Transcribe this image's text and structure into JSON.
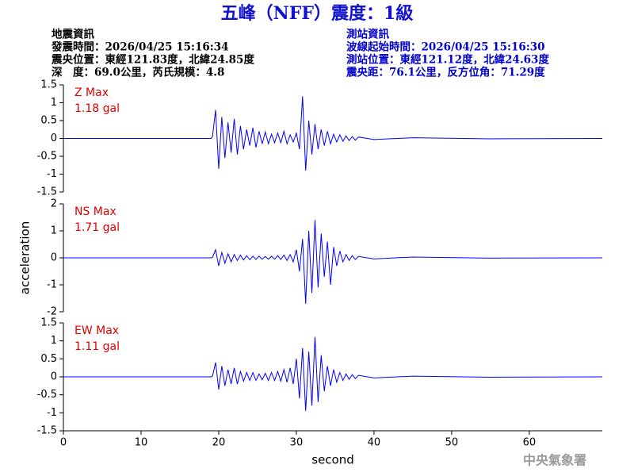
{
  "title": "五峰（NFF）震度：1級",
  "event_info": [
    "地震資訊",
    "發震時間：2026/04/25 15:16:34",
    "震央位置：東經121.83度，北緯24.85度",
    "深　度：69.0公里，芮氏規模：4.8"
  ],
  "station_info": [
    "測站資訊",
    "波線起始時間：2026/04/25 15:16:30",
    "測站位置：東經121.12度，北緯24.63度",
    "震央距：76.1公里，反方位角：71.29度"
  ],
  "footer": "中央氣象署",
  "chart_data": [
    {
      "type": "line",
      "color": "#0000ff",
      "annotations": [
        "Z Max",
        "1.18 gal"
      ],
      "xlim": [
        0,
        69.4
      ],
      "ylim": [
        -1.5,
        1.5
      ],
      "yticks": [
        1.5,
        1,
        0.5,
        0,
        -0.5,
        -1,
        -1.5
      ],
      "x": [
        0,
        19.0,
        19.2,
        19.6,
        20.0,
        20.4,
        20.8,
        21.2,
        21.6,
        22.0,
        22.4,
        22.8,
        23.2,
        23.6,
        24.0,
        24.4,
        24.8,
        25.2,
        25.6,
        26.0,
        26.4,
        26.8,
        27.2,
        27.6,
        28.0,
        28.4,
        28.8,
        29.2,
        29.6,
        30.0,
        30.4,
        30.8,
        31.2,
        31.6,
        32.0,
        32.4,
        32.8,
        33.2,
        33.6,
        34.0,
        34.4,
        34.8,
        35.2,
        35.6,
        36.0,
        36.4,
        36.8,
        37.2,
        37.6,
        38.0,
        40,
        45,
        55,
        69.4
      ],
      "values": [
        0,
        0,
        0.05,
        0.8,
        -0.85,
        0.6,
        -0.55,
        0.45,
        -0.4,
        0.55,
        -0.45,
        0.35,
        -0.3,
        0.25,
        -0.2,
        0.3,
        -0.25,
        0.2,
        -0.15,
        0.18,
        -0.15,
        0.12,
        -0.12,
        0.15,
        -0.12,
        0.2,
        -0.15,
        0.1,
        -0.1,
        0.15,
        -0.3,
        1.18,
        -0.9,
        0.5,
        -0.45,
        0.4,
        -0.3,
        0.25,
        -0.2,
        0.2,
        -0.15,
        0.12,
        -0.1,
        0.1,
        -0.08,
        0.07,
        -0.06,
        0.05,
        -0.05,
        0.04,
        -0.03,
        0.02,
        -0.01,
        0
      ]
    },
    {
      "type": "line",
      "color": "#0000ff",
      "annotations": [
        "NS Max",
        "1.71 gal"
      ],
      "ylabel": "acceleration",
      "xlim": [
        0,
        69.4
      ],
      "ylim": [
        -2,
        2
      ],
      "yticks": [
        2,
        1,
        0,
        -1,
        -2
      ],
      "x": [
        0,
        19.0,
        19.2,
        19.6,
        20.0,
        20.4,
        20.8,
        21.2,
        21.6,
        22.0,
        22.4,
        22.8,
        23.2,
        23.6,
        24.0,
        24.4,
        24.8,
        25.2,
        25.6,
        26.0,
        26.4,
        26.8,
        27.2,
        27.6,
        28.0,
        28.4,
        28.8,
        29.2,
        29.6,
        30.0,
        30.4,
        30.8,
        31.2,
        31.6,
        32.0,
        32.4,
        32.8,
        33.2,
        33.6,
        34.0,
        34.4,
        34.8,
        35.2,
        35.6,
        36.0,
        36.4,
        36.8,
        37.2,
        37.6,
        38.0,
        40,
        45,
        55,
        69.4
      ],
      "values": [
        0,
        0,
        0.02,
        0.3,
        -0.3,
        0.2,
        -0.2,
        0.15,
        -0.15,
        0.12,
        -0.1,
        0.1,
        -0.08,
        0.08,
        -0.07,
        0.06,
        -0.06,
        0.06,
        -0.05,
        0.05,
        -0.05,
        0.06,
        -0.05,
        0.08,
        -0.06,
        0.1,
        -0.1,
        0.12,
        -0.15,
        0.3,
        -0.5,
        0.7,
        -1.7,
        1.0,
        -1.3,
        1.4,
        -1.1,
        0.9,
        -0.7,
        0.6,
        -1.0,
        0.4,
        -0.3,
        0.25,
        -0.15,
        0.12,
        -0.1,
        0.08,
        -0.06,
        0.05,
        -0.04,
        0.03,
        -0.01,
        0
      ]
    },
    {
      "type": "line",
      "color": "#0000ff",
      "annotations": [
        "EW Max",
        "1.11 gal"
      ],
      "xlabel": "second",
      "xlim": [
        0,
        69.4
      ],
      "ylim": [
        -1.5,
        1.5
      ],
      "yticks": [
        1.5,
        1,
        0.5,
        0,
        -0.5,
        -1,
        -1.5
      ],
      "xticks": [
        0,
        10,
        20,
        30,
        40,
        50,
        60
      ],
      "x": [
        0,
        19.0,
        19.2,
        19.6,
        20.0,
        20.4,
        20.8,
        21.2,
        21.6,
        22.0,
        22.4,
        22.8,
        23.2,
        23.6,
        24.0,
        24.4,
        24.8,
        25.2,
        25.6,
        26.0,
        26.4,
        26.8,
        27.2,
        27.6,
        28.0,
        28.4,
        28.8,
        29.2,
        29.6,
        30.0,
        30.4,
        30.8,
        31.2,
        31.6,
        32.0,
        32.4,
        32.8,
        33.2,
        33.6,
        34.0,
        34.4,
        34.8,
        35.2,
        35.6,
        36.0,
        36.4,
        36.8,
        37.2,
        37.6,
        38.0,
        40,
        45,
        55,
        69.4
      ],
      "values": [
        0,
        0,
        0.02,
        0.4,
        -0.35,
        0.3,
        -0.25,
        0.2,
        -0.2,
        0.25,
        -0.2,
        0.15,
        -0.12,
        0.12,
        -0.1,
        0.12,
        -0.1,
        0.08,
        -0.08,
        0.1,
        -0.1,
        0.12,
        -0.1,
        0.15,
        -0.12,
        0.2,
        -0.15,
        0.25,
        -0.2,
        0.5,
        -0.6,
        0.8,
        -0.95,
        0.7,
        -0.8,
        1.11,
        -0.7,
        0.6,
        -0.4,
        0.3,
        -0.25,
        0.2,
        -0.15,
        0.12,
        -0.1,
        0.08,
        -0.07,
        0.06,
        -0.05,
        0.04,
        -0.03,
        0.02,
        -0.01,
        0
      ]
    }
  ]
}
